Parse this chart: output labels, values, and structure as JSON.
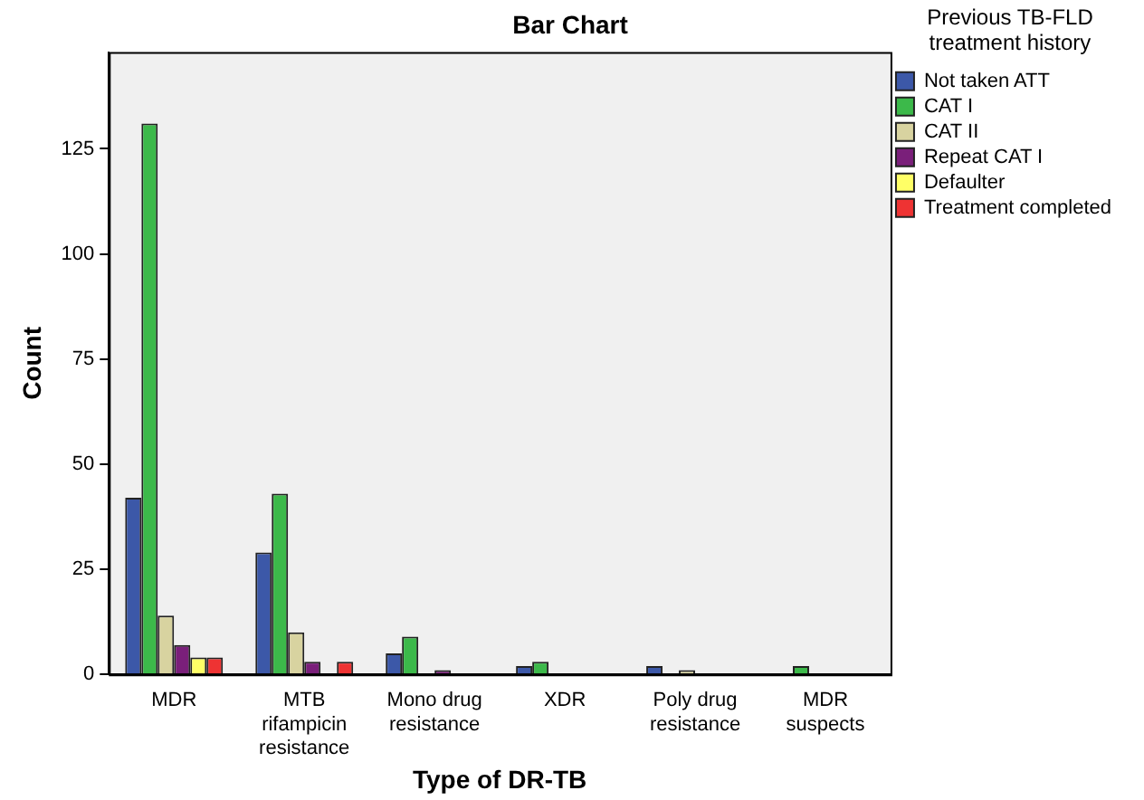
{
  "chart_data": {
    "type": "bar",
    "title": "Bar Chart",
    "xlabel": "Type of DR-TB",
    "ylabel": "Count",
    "legend_title": "Previous TB-FLD treatment history",
    "categories": [
      "MDR",
      "MTB rifampicin resistance",
      "Mono drug resistance",
      "XDR",
      "Poly drug resistance",
      "MDR suspects"
    ],
    "series": [
      {
        "name": "Not taken ATT",
        "color": "#3c58a8",
        "values": [
          42,
          29,
          5,
          2,
          2,
          null
        ]
      },
      {
        "name": "CAT I",
        "color": "#3cb94a",
        "values": [
          131,
          43,
          9,
          3,
          null,
          2
        ]
      },
      {
        "name": "CAT II",
        "color": "#d8d3a0",
        "values": [
          14,
          10,
          null,
          null,
          1,
          null
        ]
      },
      {
        "name": "Repeat CAT I",
        "color": "#7a1f7a",
        "values": [
          7,
          3,
          1,
          null,
          null,
          null
        ]
      },
      {
        "name": "Defaulter",
        "color": "#ffff66",
        "values": [
          4,
          null,
          null,
          null,
          null,
          null
        ]
      },
      {
        "name": "Treatment completed",
        "color": "#ee3333",
        "values": [
          4,
          3,
          null,
          null,
          null,
          null
        ]
      }
    ],
    "ylim": [
      0,
      148
    ],
    "yticks": [
      0,
      25,
      50,
      75,
      100,
      125
    ],
    "grid": false,
    "legend": "right"
  }
}
